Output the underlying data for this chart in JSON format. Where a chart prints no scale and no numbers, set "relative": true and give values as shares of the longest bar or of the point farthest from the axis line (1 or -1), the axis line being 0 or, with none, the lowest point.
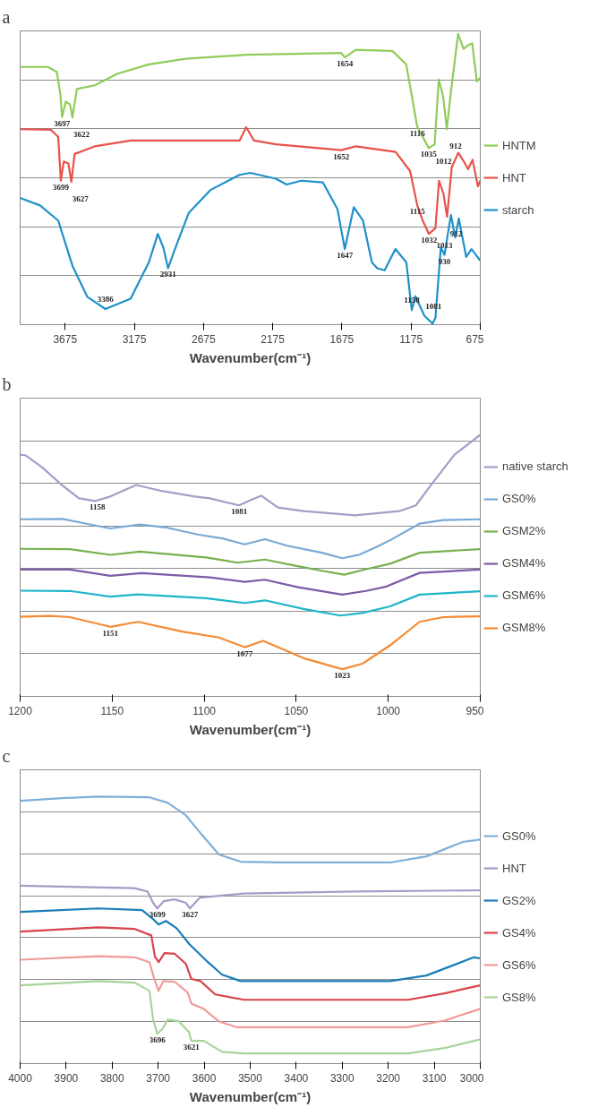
{
  "chart_data": [
    {
      "type": "line",
      "title": "a",
      "xlabel": "Wavenumber(cm⁻¹)",
      "relative": true,
      "xlim": [
        4000,
        675
      ],
      "xticks": [
        3675,
        3175,
        2675,
        2175,
        1675,
        1175,
        675
      ],
      "grid": "y",
      "legend": "right",
      "line_style": "solid",
      "marker": "none",
      "series": [
        {
          "name": "HNTM",
          "color": "#8fcc5a",
          "x": [
            4000,
            3800,
            3735,
            3709,
            3697,
            3670,
            3640,
            3622,
            3590,
            3460,
            3300,
            3070,
            2805,
            2360,
            1680,
            1654,
            1575,
            1310,
            1210,
            1130,
            1105,
            1048,
            1005,
            975,
            943,
            917,
            883,
            835,
            796,
            764,
            733,
            700,
            675
          ],
          "values": [
            0.886,
            0.886,
            0.869,
            0.79,
            0.714,
            0.767,
            0.757,
            0.712,
            0.81,
            0.823,
            0.862,
            0.895,
            0.914,
            0.928,
            0.934,
            0.919,
            0.945,
            0.941,
            0.895,
            0.679,
            0.659,
            0.607,
            0.62,
            0.843,
            0.784,
            0.672,
            0.817,
            1.0,
            0.948,
            0.961,
            0.967,
            0.836,
            0.849
          ]
        },
        {
          "name": "HNT",
          "color": "#e8524a",
          "x": [
            4000,
            3777,
            3725,
            3706,
            3685,
            3651,
            3630,
            3606,
            3462,
            3200,
            2414,
            2367,
            2310,
            2152,
            1680,
            1575,
            1287,
            1182,
            1130,
            1091,
            1046,
            999,
            973,
            941,
            915,
            881,
            834,
            794,
            763,
            731,
            692,
            675
          ],
          "values": [
            0.672,
            0.67,
            0.646,
            0.495,
            0.561,
            0.554,
            0.491,
            0.587,
            0.613,
            0.633,
            0.633,
            0.679,
            0.633,
            0.62,
            0.6,
            0.613,
            0.594,
            0.528,
            0.41,
            0.358,
            0.312,
            0.332,
            0.495,
            0.45,
            0.371,
            0.541,
            0.591,
            0.561,
            0.535,
            0.567,
            0.476,
            0.495
          ]
        },
        {
          "name": "starch",
          "color": "#1f91c9",
          "x": [
            4000,
            3856,
            3725,
            3620,
            3515,
            3384,
            3202,
            3070,
            3005,
            2966,
            2931,
            2887,
            2782,
            2625,
            2415,
            2337,
            2152,
            2074,
            1969,
            1812,
            1707,
            1654,
            1589,
            1523,
            1458,
            1419,
            1366,
            1288,
            1209,
            1170,
            1144,
            1078,
            1020,
            999,
            960,
            934,
            887,
            856,
            830,
            777,
            738,
            675
          ],
          "values": [
            0.436,
            0.41,
            0.358,
            0.2,
            0.096,
            0.054,
            0.089,
            0.214,
            0.312,
            0.266,
            0.194,
            0.253,
            0.384,
            0.463,
            0.515,
            0.522,
            0.502,
            0.482,
            0.495,
            0.489,
            0.397,
            0.26,
            0.404,
            0.358,
            0.214,
            0.194,
            0.187,
            0.26,
            0.214,
            0.05,
            0.098,
            0.03,
            0.004,
            0.024,
            0.266,
            0.24,
            0.377,
            0.3,
            0.365,
            0.233,
            0.26,
            0.22
          ]
        }
      ],
      "annotations": [
        {
          "text": "3697",
          "x": 3697,
          "y": 0.714
        },
        {
          "text": "3622",
          "x": 3622,
          "y": 0.712
        },
        {
          "text": "1654",
          "x": 1654,
          "y": 0.919
        },
        {
          "text": "1116",
          "x": 1130,
          "y": 0.679
        },
        {
          "text": "1035",
          "x": 1048,
          "y": 0.607
        },
        {
          "text": "1012",
          "x": 1005,
          "y": 0.62
        },
        {
          "text": "912",
          "x": 917,
          "y": 0.672
        },
        {
          "text": "3699",
          "x": 3706,
          "y": 0.495
        },
        {
          "text": "3627",
          "x": 3630,
          "y": 0.491
        },
        {
          "text": "1652",
          "x": 1680,
          "y": 0.6
        },
        {
          "text": "1115",
          "x": 1130,
          "y": 0.41
        },
        {
          "text": "1032",
          "x": 1046,
          "y": 0.312
        },
        {
          "text": "1013",
          "x": 999,
          "y": 0.332
        },
        {
          "text": "912",
          "x": 915,
          "y": 0.371
        },
        {
          "text": "3386",
          "x": 3384,
          "y": 0.054
        },
        {
          "text": "2931",
          "x": 2931,
          "y": 0.194
        },
        {
          "text": "1647",
          "x": 1654,
          "y": 0.26
        },
        {
          "text": "1158",
          "x": 1170,
          "y": 0.05
        },
        {
          "text": "1081",
          "x": 1078,
          "y": 0.03
        },
        {
          "text": "930",
          "x": 934,
          "y": 0.24
        }
      ]
    },
    {
      "type": "line",
      "title": "b",
      "xlabel": "Wavenumber(cm⁻¹)",
      "relative": true,
      "xlim": [
        1200,
        950
      ],
      "xticks": [
        1200,
        1150,
        1100,
        1050,
        1000,
        950
      ],
      "grid": "y",
      "legend": "right",
      "line_style": "solid",
      "marker": "none",
      "series": [
        {
          "name": "native starch",
          "color": "#a89cc8",
          "x": [
            1200,
            1197,
            1188,
            1177,
            1168,
            1159,
            1151,
            1137,
            1123,
            1105,
            1097,
            1081,
            1075,
            1069,
            1060,
            1046,
            1018,
            994,
            985,
            977,
            964,
            950
          ],
          "values": [
            0.924,
            0.921,
            0.875,
            0.806,
            0.757,
            0.747,
            0.764,
            0.808,
            0.785,
            0.764,
            0.757,
            0.73,
            0.75,
            0.767,
            0.722,
            0.708,
            0.692,
            0.708,
            0.73,
            0.806,
            0.924,
            1.0
          ]
        },
        {
          "name": "GS0%",
          "color": "#7aa9d6",
          "x": [
            1200,
            1177,
            1164,
            1151,
            1135,
            1121,
            1103,
            1090,
            1078,
            1067,
            1055,
            1036,
            1025,
            1016,
            1007,
            999,
            983,
            970,
            950
          ],
          "values": [
            0.677,
            0.678,
            0.66,
            0.642,
            0.657,
            0.646,
            0.618,
            0.604,
            0.581,
            0.601,
            0.576,
            0.549,
            0.528,
            0.541,
            0.569,
            0.597,
            0.66,
            0.674,
            0.677
          ]
        },
        {
          "name": "GSM2%",
          "color": "#77b14f",
          "x": [
            1200,
            1173,
            1151,
            1135,
            1099,
            1082,
            1067,
            1051,
            1036,
            1024,
            1012,
            999,
            983,
            950
          ],
          "values": [
            0.564,
            0.563,
            0.541,
            0.553,
            0.531,
            0.511,
            0.523,
            0.5,
            0.48,
            0.465,
            0.486,
            0.507,
            0.549,
            0.563
          ]
        },
        {
          "name": "GSM4%",
          "color": "#7d5ba6",
          "x": [
            1200,
            1173,
            1151,
            1134,
            1097,
            1078,
            1067,
            1049,
            1025,
            1012,
            1001,
            983,
            950
          ],
          "values": [
            0.485,
            0.485,
            0.461,
            0.471,
            0.455,
            0.438,
            0.446,
            0.417,
            0.389,
            0.403,
            0.42,
            0.472,
            0.485
          ]
        },
        {
          "name": "GSM6%",
          "color": "#1fb6c8",
          "x": [
            1200,
            1173,
            1151,
            1136,
            1099,
            1078,
            1067,
            1046,
            1026,
            1014,
            999,
            983,
            950
          ],
          "values": [
            0.404,
            0.403,
            0.381,
            0.39,
            0.375,
            0.357,
            0.367,
            0.334,
            0.309,
            0.319,
            0.344,
            0.389,
            0.402
          ]
        },
        {
          "name": "GSM8%",
          "color": "#f58a32",
          "x": [
            1200,
            1184,
            1173,
            1151,
            1136,
            1112,
            1092,
            1078,
            1068,
            1046,
            1025,
            1014,
            999,
            983,
            970,
            950
          ],
          "values": [
            0.304,
            0.308,
            0.303,
            0.266,
            0.285,
            0.248,
            0.225,
            0.188,
            0.212,
            0.146,
            0.104,
            0.125,
            0.195,
            0.285,
            0.303,
            0.306
          ]
        }
      ],
      "annotations": [
        {
          "text": "1158",
          "x": 1158,
          "y": 0.747
        },
        {
          "text": "1081",
          "x": 1081,
          "y": 0.73
        },
        {
          "text": "1151",
          "x": 1151,
          "y": 0.266
        },
        {
          "text": "1077",
          "x": 1078,
          "y": 0.188
        },
        {
          "text": "1023",
          "x": 1025,
          "y": 0.104
        }
      ]
    },
    {
      "type": "line",
      "title": "c",
      "xlabel": "Wavenumber(cm⁻¹)",
      "relative": true,
      "xlim": [
        4000,
        3000
      ],
      "xticks": [
        4000,
        3900,
        3800,
        3700,
        3600,
        3500,
        3400,
        3300,
        3200,
        3100,
        3000
      ],
      "grid": "y",
      "legend": "right",
      "line_style": "solid",
      "marker": "none",
      "series": [
        {
          "name": "GS0%",
          "color": "#7fb0d9",
          "x": [
            4000,
            3909,
            3830,
            3719,
            3680,
            3640,
            3608,
            3568,
            3521,
            3434,
            3196,
            3117,
            3038,
            3000
          ],
          "values": [
            0.984,
            0.994,
            1.0,
            0.997,
            0.977,
            0.93,
            0.863,
            0.783,
            0.756,
            0.753,
            0.753,
            0.776,
            0.83,
            0.839
          ]
        },
        {
          "name": "HNT",
          "color": "#a99ac8",
          "x": [
            4000,
            3751,
            3723,
            3711,
            3702,
            3688,
            3664,
            3640,
            3631,
            3609,
            3514,
            3276,
            3000
          ],
          "values": [
            0.666,
            0.657,
            0.644,
            0.602,
            0.581,
            0.608,
            0.615,
            0.602,
            0.581,
            0.622,
            0.637,
            0.644,
            0.649
          ]
        },
        {
          "name": "GS2%",
          "color": "#1a7db8",
          "x": [
            4000,
            3830,
            3735,
            3711,
            3699,
            3683,
            3660,
            3632,
            3592,
            3561,
            3521,
            3196,
            3117,
            3014,
            3000
          ],
          "values": [
            0.568,
            0.581,
            0.575,
            0.541,
            0.521,
            0.534,
            0.507,
            0.447,
            0.38,
            0.333,
            0.309,
            0.309,
            0.33,
            0.398,
            0.394
          ]
        },
        {
          "name": "GS4%",
          "color": "#d9434a",
          "x": [
            4000,
            3830,
            3751,
            3715,
            3707,
            3699,
            3686,
            3664,
            3640,
            3628,
            3608,
            3576,
            3513,
            3157,
            3078,
            3000
          ],
          "values": [
            0.494,
            0.51,
            0.504,
            0.48,
            0.4,
            0.38,
            0.414,
            0.411,
            0.374,
            0.317,
            0.309,
            0.259,
            0.239,
            0.239,
            0.263,
            0.293
          ]
        },
        {
          "name": "GS6%",
          "color": "#f09a9a",
          "x": [
            4000,
            3830,
            3751,
            3719,
            3709,
            3699,
            3689,
            3664,
            3636,
            3628,
            3601,
            3569,
            3529,
            3157,
            3078,
            3000
          ],
          "values": [
            0.389,
            0.402,
            0.398,
            0.38,
            0.32,
            0.272,
            0.309,
            0.306,
            0.266,
            0.225,
            0.205,
            0.159,
            0.136,
            0.136,
            0.161,
            0.205
          ]
        },
        {
          "name": "GS8%",
          "color": "#a8d49a",
          "x": [
            4000,
            3830,
            3751,
            3719,
            3711,
            3702,
            3691,
            3679,
            3656,
            3633,
            3628,
            3601,
            3561,
            3513,
            3157,
            3078,
            3000
          ],
          "values": [
            0.293,
            0.309,
            0.303,
            0.272,
            0.165,
            0.112,
            0.129,
            0.165,
            0.159,
            0.118,
            0.085,
            0.085,
            0.044,
            0.038,
            0.038,
            0.058,
            0.091
          ]
        }
      ],
      "annotations": [
        {
          "text": "3699",
          "x": 3702,
          "y": 0.581
        },
        {
          "text": "3627",
          "x": 3631,
          "y": 0.581
        },
        {
          "text": "3696",
          "x": 3702,
          "y": 0.112
        },
        {
          "text": "3621",
          "x": 3628,
          "y": 0.085
        }
      ]
    }
  ]
}
